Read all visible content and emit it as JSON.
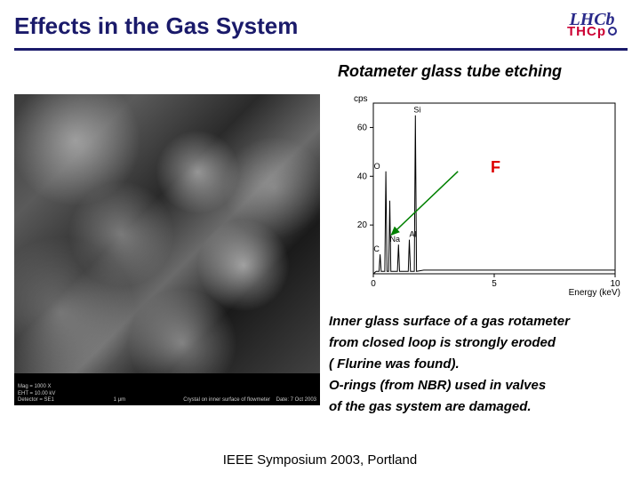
{
  "title": "Effects in the Gas System",
  "logo": {
    "top": "LHCb",
    "bottom": "THCp"
  },
  "subtitle": "Rotameter glass tube etching",
  "sem_caption": {
    "left": "Mag = 1000 X\nEHT = 10.00 kV\nDetector = SE1",
    "mid": "1 μm",
    "right": "Crystal on inner surface of flowmeter    Date: 7 Oct 2003"
  },
  "text_lines": [
    "Inner glass surface of a gas rotameter",
    "from closed loop is strongly eroded",
    "( Flurine was found).",
    " O-rings (from NBR) used in valves",
    "of the gas system are damaged."
  ],
  "footer": "IEEE Symposium 2003, Portland",
  "spectrum": {
    "type": "line",
    "yaxis_label": "cps",
    "xaxis_label": "Energy (keV)",
    "xlim": [
      0,
      10
    ],
    "ylim": [
      0,
      70
    ],
    "ytick_step": 20,
    "xtick_step": 5,
    "background_color": "#ffffff",
    "axis_color": "#000000",
    "line_color": "#000000",
    "line_width": 1,
    "label_fontsize": 10,
    "peak_label_fontsize": 9,
    "f_label": "F",
    "f_label_color": "#dd0000",
    "f_label_fontsize": 18,
    "arrow_color": "#008000",
    "peaks": [
      {
        "x": 0.28,
        "height": 8,
        "label": "C",
        "label_dx": -4,
        "label_dy": -3
      },
      {
        "x": 0.52,
        "height": 42,
        "label": "O",
        "label_dx": -10,
        "label_dy": -3
      },
      {
        "x": 0.68,
        "height": 30,
        "label": "",
        "label_dx": 0,
        "label_dy": 0
      },
      {
        "x": 1.04,
        "height": 12,
        "label": "Na",
        "label_dx": -4,
        "label_dy": -3
      },
      {
        "x": 1.49,
        "height": 14,
        "label": "Al",
        "label_dx": 4,
        "label_dy": -3
      },
      {
        "x": 1.74,
        "height": 65,
        "label": "Si",
        "label_dx": 2,
        "label_dy": -3
      }
    ],
    "tail_y": 1.5,
    "arrow": {
      "from_x": 3.5,
      "from_y": 42,
      "to_x": 0.75,
      "to_y": 16
    }
  }
}
